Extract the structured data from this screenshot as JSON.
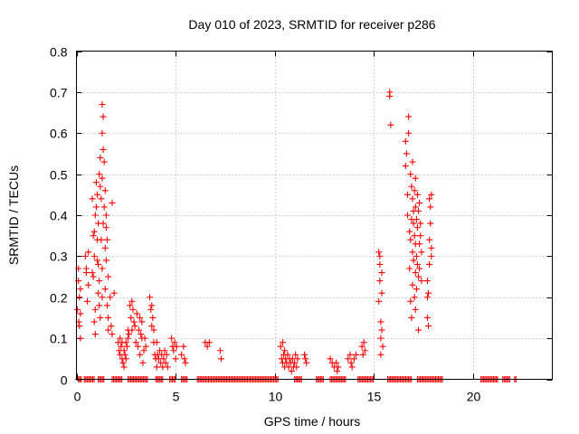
{
  "chart_data": {
    "type": "scatter",
    "title": "Day 010 of 2023, SRMTID for receiver p286",
    "xlabel": "GPS time / hours",
    "ylabel": "SRMTID / TECUs",
    "xlim": [
      0,
      24
    ],
    "ylim": [
      0,
      0.8
    ],
    "xticks": [
      0,
      5,
      10,
      15,
      20
    ],
    "yticks": [
      0,
      0.1,
      0.2,
      0.3,
      0.4,
      0.5,
      0.6,
      0.7,
      0.8
    ],
    "ytick_labels": [
      "0",
      "0.1",
      "0.2",
      "0.3",
      "0.4",
      "0.5",
      "0.6",
      "0.7",
      "0.8"
    ],
    "grid": true,
    "marker": "+",
    "color": "#ff0000",
    "series": [
      {
        "name": "SRMTID",
        "points": [
          [
            0.05,
            0.17
          ],
          [
            0.1,
            0.24
          ],
          [
            0.1,
            0.27
          ],
          [
            0.12,
            0.14
          ],
          [
            0.15,
            0.2
          ],
          [
            0.15,
            0.13
          ],
          [
            0.2,
            0.16
          ],
          [
            0.2,
            0.22
          ],
          [
            0.2,
            0.1
          ],
          [
            0.45,
            0.3
          ],
          [
            0.5,
            0.26
          ],
          [
            0.5,
            0.27
          ],
          [
            0.55,
            0.19
          ],
          [
            0.6,
            0.31
          ],
          [
            0.6,
            0.23
          ],
          [
            0.8,
            0.44
          ],
          [
            0.8,
            0.26
          ],
          [
            0.85,
            0.35
          ],
          [
            0.85,
            0.25
          ],
          [
            0.9,
            0.36
          ],
          [
            0.9,
            0.3
          ],
          [
            0.9,
            0.14
          ],
          [
            0.95,
            0.4
          ],
          [
            0.95,
            0.17
          ],
          [
            0.95,
            0.11
          ],
          [
            1.0,
            0.48
          ],
          [
            1.0,
            0.42
          ],
          [
            1.05,
            0.45
          ],
          [
            1.05,
            0.34
          ],
          [
            1.05,
            0.29
          ],
          [
            1.1,
            0.38
          ],
          [
            1.1,
            0.28
          ],
          [
            1.1,
            0.21
          ],
          [
            1.15,
            0.5
          ],
          [
            1.15,
            0.24
          ],
          [
            1.15,
            0.18
          ],
          [
            1.2,
            0.54
          ],
          [
            1.2,
            0.47
          ],
          [
            1.2,
            0.15
          ],
          [
            1.25,
            0.44
          ],
          [
            1.25,
            0.34
          ],
          [
            1.3,
            0.67
          ],
          [
            1.3,
            0.6
          ],
          [
            1.3,
            0.49
          ],
          [
            1.3,
            0.27
          ],
          [
            1.3,
            0.2
          ],
          [
            1.35,
            0.64
          ],
          [
            1.35,
            0.56
          ],
          [
            1.35,
            0.38
          ],
          [
            1.4,
            0.53
          ],
          [
            1.4,
            0.42
          ],
          [
            1.45,
            0.46
          ],
          [
            1.45,
            0.32
          ],
          [
            1.45,
            0.22
          ],
          [
            1.5,
            0.4
          ],
          [
            1.5,
            0.37
          ],
          [
            1.5,
            0.29
          ],
          [
            1.55,
            0.34
          ],
          [
            1.55,
            0.18
          ],
          [
            1.6,
            0.25
          ],
          [
            1.6,
            0.15
          ],
          [
            1.6,
            0.12
          ],
          [
            1.7,
            0.2
          ],
          [
            1.75,
            0.13
          ],
          [
            1.8,
            0.43
          ],
          [
            1.8,
            0.11
          ],
          [
            1.9,
            0.21
          ],
          [
            2.1,
            0.09
          ],
          [
            2.15,
            0.07
          ],
          [
            2.2,
            0.1
          ],
          [
            2.2,
            0.06
          ],
          [
            2.25,
            0.08
          ],
          [
            2.3,
            0.05
          ],
          [
            2.3,
            0.09
          ],
          [
            2.35,
            0.04
          ],
          [
            2.4,
            0.07
          ],
          [
            2.4,
            0.03
          ],
          [
            2.45,
            0.06
          ],
          [
            2.5,
            0.09
          ],
          [
            2.5,
            0.05
          ],
          [
            2.55,
            0.08
          ],
          [
            2.6,
            0.1
          ],
          [
            2.6,
            0.12
          ],
          [
            2.65,
            0.11
          ],
          [
            2.7,
            0.18
          ],
          [
            2.75,
            0.15
          ],
          [
            2.8,
            0.19
          ],
          [
            2.8,
            0.12
          ],
          [
            2.85,
            0.17
          ],
          [
            2.9,
            0.14
          ],
          [
            2.95,
            0.13
          ],
          [
            3.0,
            0.09
          ],
          [
            3.05,
            0.16
          ],
          [
            3.1,
            0.08
          ],
          [
            3.15,
            0.12
          ],
          [
            3.2,
            0.15
          ],
          [
            3.2,
            0.06
          ],
          [
            3.25,
            0.11
          ],
          [
            3.3,
            0.14
          ],
          [
            3.3,
            0.1
          ],
          [
            3.35,
            0.04
          ],
          [
            3.4,
            0.07
          ],
          [
            3.45,
            0.1
          ],
          [
            3.5,
            0.08
          ],
          [
            3.7,
            0.2
          ],
          [
            3.75,
            0.17
          ],
          [
            3.8,
            0.18
          ],
          [
            3.8,
            0.13
          ],
          [
            3.85,
            0.15
          ],
          [
            3.9,
            0.12
          ],
          [
            3.9,
            0.09
          ],
          [
            3.95,
            0.06
          ],
          [
            4.0,
            0.05
          ],
          [
            4.05,
            0.09
          ],
          [
            4.05,
            0.03
          ],
          [
            4.1,
            0.06
          ],
          [
            4.15,
            0.05
          ],
          [
            4.2,
            0.07
          ],
          [
            4.25,
            0.04
          ],
          [
            4.3,
            0.06
          ],
          [
            4.35,
            0.03
          ],
          [
            4.4,
            0.05
          ],
          [
            4.45,
            0.07
          ],
          [
            4.5,
            0.04
          ],
          [
            4.55,
            0.06
          ],
          [
            4.6,
            0.03
          ],
          [
            4.8,
            0.1
          ],
          [
            4.85,
            0.08
          ],
          [
            4.9,
            0.07
          ],
          [
            4.95,
            0.09
          ],
          [
            5.0,
            0.05
          ],
          [
            5.05,
            0.08
          ],
          [
            5.3,
            0.06
          ],
          [
            5.4,
            0.08
          ],
          [
            5.45,
            0.05
          ],
          [
            5.5,
            0.04
          ],
          [
            6.5,
            0.09
          ],
          [
            6.6,
            0.08
          ],
          [
            6.7,
            0.09
          ],
          [
            7.25,
            0.07
          ],
          [
            7.3,
            0.05
          ],
          [
            10.3,
            0.08
          ],
          [
            10.35,
            0.05
          ],
          [
            10.4,
            0.09
          ],
          [
            10.4,
            0.04
          ],
          [
            10.45,
            0.06
          ],
          [
            10.5,
            0.07
          ],
          [
            10.5,
            0.03
          ],
          [
            10.55,
            0.05
          ],
          [
            10.6,
            0.04
          ],
          [
            10.65,
            0.06
          ],
          [
            10.7,
            0.03
          ],
          [
            10.75,
            0.05
          ],
          [
            10.8,
            0.04
          ],
          [
            10.85,
            0.02
          ],
          [
            10.9,
            0.05
          ],
          [
            10.95,
            0.03
          ],
          [
            11.0,
            0.04
          ],
          [
            11.05,
            0.06
          ],
          [
            11.1,
            0.03
          ],
          [
            11.15,
            0.05
          ],
          [
            11.5,
            0.06
          ],
          [
            11.55,
            0.05
          ],
          [
            11.6,
            0.04
          ],
          [
            12.8,
            0.05
          ],
          [
            12.9,
            0.04
          ],
          [
            13.0,
            0.03
          ],
          [
            13.1,
            0.04
          ],
          [
            13.15,
            0.02
          ],
          [
            13.2,
            0.03
          ],
          [
            13.7,
            0.05
          ],
          [
            13.8,
            0.06
          ],
          [
            13.85,
            0.04
          ],
          [
            13.9,
            0.03
          ],
          [
            14.0,
            0.05
          ],
          [
            14.1,
            0.06
          ],
          [
            14.4,
            0.08
          ],
          [
            14.45,
            0.06
          ],
          [
            14.5,
            0.09
          ],
          [
            14.55,
            0.07
          ],
          [
            15.25,
            0.31
          ],
          [
            15.25,
            0.19
          ],
          [
            15.3,
            0.3
          ],
          [
            15.3,
            0.28
          ],
          [
            15.3,
            0.24
          ],
          [
            15.35,
            0.14
          ],
          [
            15.35,
            0.1
          ],
          [
            15.35,
            0.06
          ],
          [
            15.4,
            0.26
          ],
          [
            15.4,
            0.21
          ],
          [
            15.4,
            0.12
          ],
          [
            15.45,
            0.08
          ],
          [
            15.8,
            0.7
          ],
          [
            15.8,
            0.69
          ],
          [
            15.85,
            0.62
          ],
          [
            16.6,
            0.58
          ],
          [
            16.6,
            0.52
          ],
          [
            16.65,
            0.55
          ],
          [
            16.7,
            0.45
          ],
          [
            16.7,
            0.4
          ],
          [
            16.75,
            0.64
          ],
          [
            16.75,
            0.6
          ],
          [
            16.8,
            0.36
          ],
          [
            16.8,
            0.27
          ],
          [
            16.85,
            0.5
          ],
          [
            16.85,
            0.34
          ],
          [
            16.85,
            0.19
          ],
          [
            16.9,
            0.47
          ],
          [
            16.9,
            0.39
          ],
          [
            16.9,
            0.15
          ],
          [
            16.95,
            0.53
          ],
          [
            16.95,
            0.44
          ],
          [
            16.95,
            0.31
          ],
          [
            16.95,
            0.23
          ],
          [
            17.0,
            0.41
          ],
          [
            17.0,
            0.38
          ],
          [
            17.0,
            0.29
          ],
          [
            17.05,
            0.46
          ],
          [
            17.05,
            0.35
          ],
          [
            17.05,
            0.2
          ],
          [
            17.1,
            0.49
          ],
          [
            17.1,
            0.42
          ],
          [
            17.1,
            0.33
          ],
          [
            17.1,
            0.26
          ],
          [
            17.1,
            0.17
          ],
          [
            17.15,
            0.39
          ],
          [
            17.15,
            0.3
          ],
          [
            17.15,
            0.22
          ],
          [
            17.2,
            0.45
          ],
          [
            17.2,
            0.37
          ],
          [
            17.2,
            0.28
          ],
          [
            17.25,
            0.41
          ],
          [
            17.25,
            0.25
          ],
          [
            17.25,
            0.12
          ],
          [
            17.3,
            0.43
          ],
          [
            17.3,
            0.33
          ],
          [
            17.3,
            0.27
          ],
          [
            17.35,
            0.35
          ],
          [
            17.35,
            0.38
          ],
          [
            17.4,
            0.31
          ],
          [
            17.4,
            0.24
          ],
          [
            17.7,
            0.24
          ],
          [
            17.7,
            0.2
          ],
          [
            17.7,
            0.15
          ],
          [
            17.75,
            0.21
          ],
          [
            17.75,
            0.13
          ],
          [
            17.8,
            0.44
          ],
          [
            17.8,
            0.34
          ],
          [
            17.8,
            0.28
          ],
          [
            17.85,
            0.42
          ],
          [
            17.85,
            0.38
          ],
          [
            17.9,
            0.45
          ],
          [
            17.9,
            0.32
          ],
          [
            17.9,
            0.3
          ]
        ]
      },
      {
        "name": "zero",
        "x_ranges": [
          [
            0.1,
            0.3
          ],
          [
            0.4,
            0.9
          ],
          [
            1.1,
            1.4
          ],
          [
            1.8,
            2.3
          ],
          [
            2.6,
            3.6
          ],
          [
            4.0,
            4.4
          ],
          [
            4.7,
            5.0
          ],
          [
            5.3,
            5.6
          ],
          [
            6.1,
            10.2
          ],
          [
            11.0,
            11.4
          ],
          [
            12.1,
            12.5
          ],
          [
            12.8,
            13.6
          ],
          [
            14.2,
            15.0
          ],
          [
            15.7,
            16.9
          ],
          [
            17.2,
            18.5
          ],
          [
            20.4,
            21.3
          ],
          [
            21.5,
            21.9
          ],
          [
            22.1,
            22.2
          ]
        ],
        "y": 0
      }
    ]
  }
}
